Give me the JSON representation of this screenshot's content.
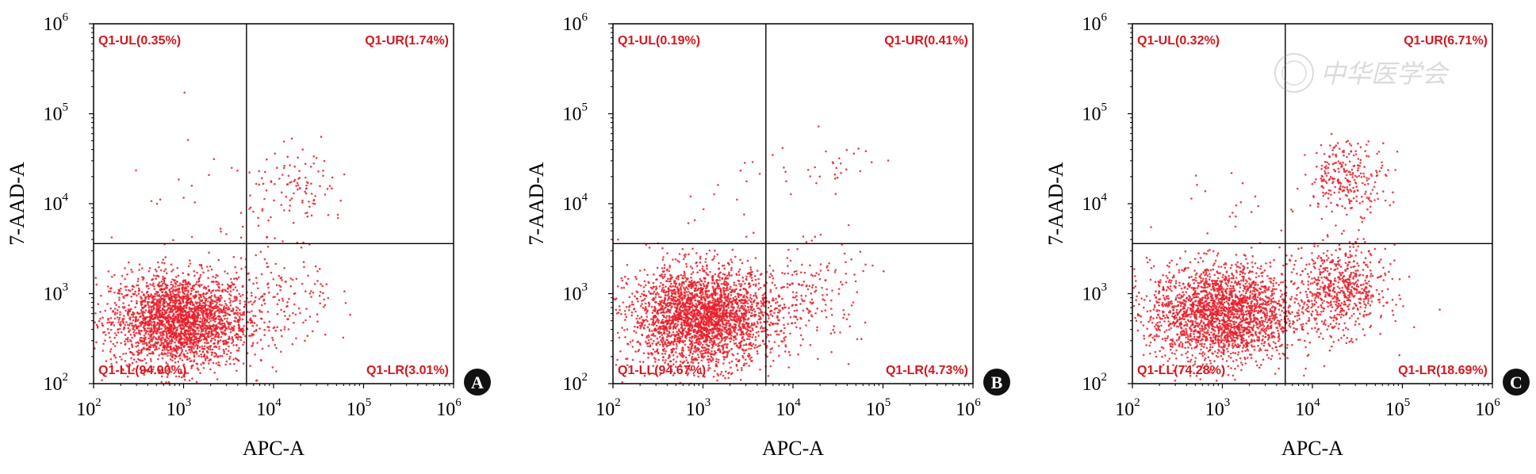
{
  "colors": {
    "dots": "#e8202a",
    "quadrant_text": "#d4181f",
    "axis": "#000000",
    "badge": "#111111",
    "badge_text": "#ffffff"
  },
  "watermark": "中华医学会",
  "chart_data": [
    {
      "type": "scatter",
      "panel_label": "A",
      "xlabel": "APC-A",
      "ylabel": "7-AAD-A",
      "xscale": "log",
      "yscale": "log",
      "xlim": [
        100,
        1000000
      ],
      "ylim": [
        100,
        1000000
      ],
      "xticks": [
        {
          "base": "10",
          "exp": "2"
        },
        {
          "base": "10",
          "exp": "3"
        },
        {
          "base": "10",
          "exp": "4"
        },
        {
          "base": "10",
          "exp": "5"
        },
        {
          "base": "10",
          "exp": "6"
        }
      ],
      "yticks": [
        {
          "base": "10",
          "exp": "2"
        },
        {
          "base": "10",
          "exp": "3"
        },
        {
          "base": "10",
          "exp": "4"
        },
        {
          "base": "10",
          "exp": "5"
        },
        {
          "base": "10",
          "exp": "6"
        }
      ],
      "gate": {
        "x": 5000,
        "y": 3600
      },
      "quadrants": {
        "UL": "Q1-UL(0.35%)",
        "UR": "Q1-UR(1.74%)",
        "LL": "Q1-LL(94.90%)",
        "LR": "Q1-LR(3.01%)"
      },
      "populations": [
        {
          "quadrant": "LL",
          "percent": 94.9,
          "center": [
            900,
            500
          ],
          "spread": [
            0.38,
            0.26
          ],
          "n": 2600
        },
        {
          "quadrant": "LR",
          "percent": 3.01,
          "center": [
            12000,
            900
          ],
          "spread": [
            0.3,
            0.32
          ],
          "n": 150
        },
        {
          "quadrant": "UR",
          "percent": 1.74,
          "center": [
            20000,
            14000
          ],
          "spread": [
            0.28,
            0.22
          ],
          "n": 110
        },
        {
          "quadrant": "UL",
          "percent": 0.35,
          "center": [
            1500,
            12000
          ],
          "spread": [
            0.4,
            0.35
          ],
          "n": 20
        }
      ]
    },
    {
      "type": "scatter",
      "panel_label": "B",
      "xlabel": "APC-A",
      "ylabel": "7-AAD-A",
      "xscale": "log",
      "yscale": "log",
      "xlim": [
        100,
        1000000
      ],
      "ylim": [
        100,
        1000000
      ],
      "xticks": [
        {
          "base": "10",
          "exp": "2"
        },
        {
          "base": "10",
          "exp": "3"
        },
        {
          "base": "10",
          "exp": "4"
        },
        {
          "base": "10",
          "exp": "5"
        },
        {
          "base": "10",
          "exp": "6"
        }
      ],
      "yticks": [
        {
          "base": "10",
          "exp": "2"
        },
        {
          "base": "10",
          "exp": "3"
        },
        {
          "base": "10",
          "exp": "4"
        },
        {
          "base": "10",
          "exp": "5"
        },
        {
          "base": "10",
          "exp": "6"
        }
      ],
      "gate": {
        "x": 5000,
        "y": 3600
      },
      "quadrants": {
        "UL": "Q1-UL(0.19%)",
        "UR": "Q1-UR(0.41%)",
        "LL": "Q1-LL(94.67%)",
        "LR": "Q1-LR(4.73%)"
      },
      "populations": [
        {
          "quadrant": "LL",
          "percent": 94.67,
          "center": [
            1000,
            550
          ],
          "spread": [
            0.4,
            0.27
          ],
          "n": 2800
        },
        {
          "quadrant": "LR",
          "percent": 4.73,
          "center": [
            15000,
            1000
          ],
          "spread": [
            0.3,
            0.28
          ],
          "n": 170
        },
        {
          "quadrant": "UR",
          "percent": 0.41,
          "center": [
            25000,
            25000
          ],
          "spread": [
            0.28,
            0.18
          ],
          "n": 30
        },
        {
          "quadrant": "UL",
          "percent": 0.19,
          "center": [
            1800,
            9000
          ],
          "spread": [
            0.35,
            0.35
          ],
          "n": 15
        }
      ]
    },
    {
      "type": "scatter",
      "panel_label": "C",
      "xlabel": "APC-A",
      "ylabel": "7-AAD-A",
      "xscale": "log",
      "yscale": "log",
      "xlim": [
        100,
        1000000
      ],
      "ylim": [
        100,
        1000000
      ],
      "xticks": [
        {
          "base": "10",
          "exp": "2"
        },
        {
          "base": "10",
          "exp": "3"
        },
        {
          "base": "10",
          "exp": "4"
        },
        {
          "base": "10",
          "exp": "5"
        },
        {
          "base": "10",
          "exp": "6"
        }
      ],
      "yticks": [
        {
          "base": "10",
          "exp": "2"
        },
        {
          "base": "10",
          "exp": "3"
        },
        {
          "base": "10",
          "exp": "4"
        },
        {
          "base": "10",
          "exp": "5"
        },
        {
          "base": "10",
          "exp": "6"
        }
      ],
      "gate": {
        "x": 5000,
        "y": 3600
      },
      "quadrants": {
        "UL": "Q1-UL(0.32%)",
        "UR": "Q1-UR(6.71%)",
        "LL": "Q1-LL(74.28%)",
        "LR": "Q1-LR(18.69%)"
      },
      "populations": [
        {
          "quadrant": "LL",
          "percent": 74.28,
          "center": [
            1000,
            600
          ],
          "spread": [
            0.4,
            0.27
          ],
          "n": 2300
        },
        {
          "quadrant": "LR",
          "percent": 18.69,
          "center": [
            20000,
            1100
          ],
          "spread": [
            0.26,
            0.24
          ],
          "n": 650
        },
        {
          "quadrant": "UR",
          "percent": 6.71,
          "center": [
            25000,
            20000
          ],
          "spread": [
            0.22,
            0.2
          ],
          "n": 260
        },
        {
          "quadrant": "UL",
          "percent": 0.32,
          "center": [
            2000,
            12000
          ],
          "spread": [
            0.35,
            0.35
          ],
          "n": 20
        }
      ]
    }
  ]
}
